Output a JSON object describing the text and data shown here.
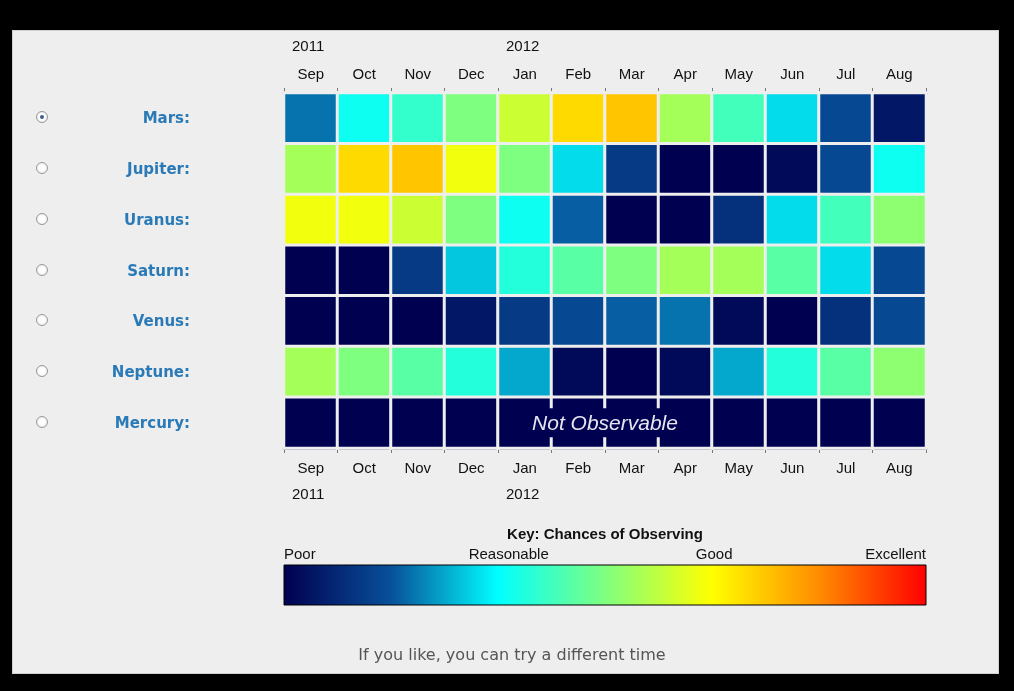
{
  "chart_data": {
    "type": "heatmap",
    "categories": [
      "Sep",
      "Oct",
      "Nov",
      "Dec",
      "Jan",
      "Feb",
      "Mar",
      "Apr",
      "May",
      "Jun",
      "Jul",
      "Aug"
    ],
    "y_categories": [
      "Mars:",
      "Jupiter:",
      "Uranus:",
      "Saturn:",
      "Venus:",
      "Neptune:",
      "Mercury:"
    ],
    "cells": [
      [
        0.2,
        0.35,
        0.4,
        0.5,
        0.6,
        0.72,
        0.75,
        0.55,
        0.42,
        0.3,
        0.15,
        0.05
      ],
      [
        0.55,
        0.72,
        0.75,
        0.65,
        0.5,
        0.3,
        0.12,
        0,
        0,
        0.02,
        0.15,
        0.35
      ],
      [
        0.65,
        0.65,
        0.6,
        0.5,
        0.35,
        0.18,
        0,
        0,
        0.1,
        0.3,
        0.42,
        0.52
      ],
      [
        0,
        0,
        0.12,
        0.28,
        0.38,
        0.45,
        0.5,
        0.55,
        0.55,
        0.45,
        0.3,
        0.15
      ],
      [
        0,
        0,
        0,
        0.05,
        0.12,
        0.15,
        0.18,
        0.2,
        0.02,
        0,
        0.1,
        0.15
      ],
      [
        0.55,
        0.5,
        0.45,
        0.38,
        0.25,
        0.02,
        0,
        0.02,
        0.25,
        0.38,
        0.45,
        0.52
      ],
      [
        0,
        0,
        0,
        0,
        0,
        0,
        0,
        0,
        0,
        0,
        0,
        0
      ]
    ],
    "clabel": "Key: Chances of Observing",
    "clim": [
      0,
      1
    ],
    "cticks": [
      {
        "value": 0,
        "label": "Poor"
      },
      {
        "value": 0.35,
        "label": "Reasonable"
      },
      {
        "value": 0.67,
        "label": "Good"
      },
      {
        "value": 1,
        "label": "Excellent"
      }
    ],
    "annotations": [
      "2011",
      "2012",
      "Not Observable",
      "If you like, you can try a different time"
    ]
  }
}
